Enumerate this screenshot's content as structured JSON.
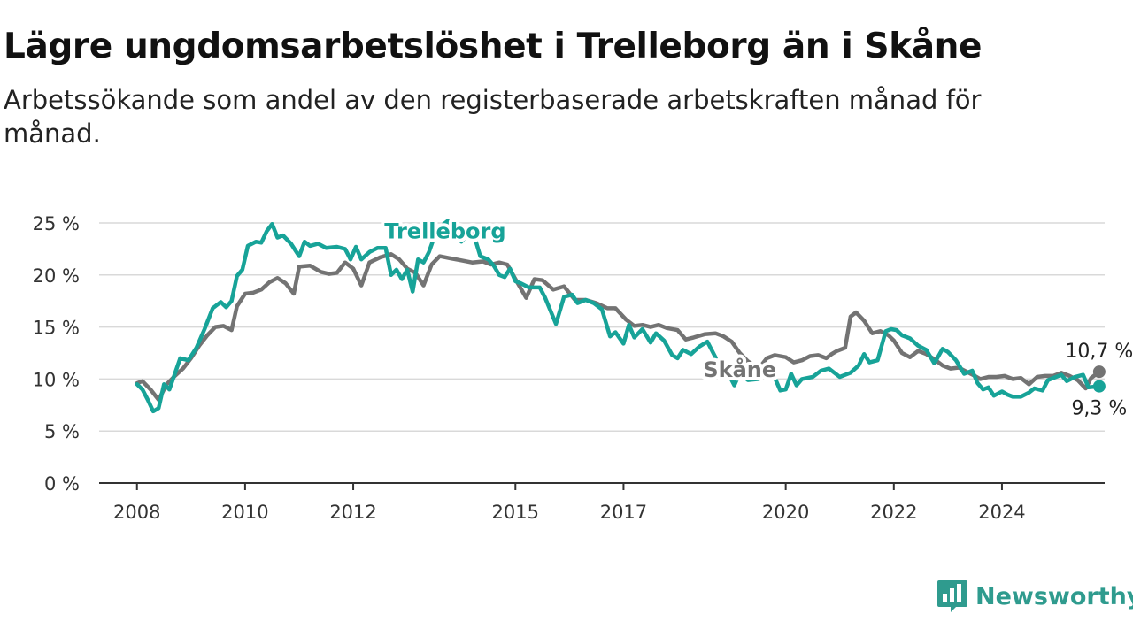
{
  "title": "Lägre ungdomsarbetslöshet i Trelleborg än i Skåne",
  "subtitle": "Arbetssökande som andel av den registerbaserade arbetskraften månad för månad.",
  "brand": "Newsworthy",
  "chart_data": {
    "type": "line",
    "title": "Lägre ungdomsarbetslöshet i Trelleborg än i Skåne",
    "subtitle": "Arbetssökande som andel av den registerbaserade arbetskraften månad för månad.",
    "xlabel": "",
    "ylabel": "",
    "ylim": [
      0,
      25
    ],
    "xlim": [
      2007.3,
      2025.9
    ],
    "y_ticks": [
      0,
      5,
      10,
      15,
      20,
      25
    ],
    "y_tick_labels": [
      "0 %",
      "5 %",
      "10 %",
      "15 %",
      "20 %",
      "25 %"
    ],
    "x_ticks": [
      2008,
      2010,
      2012,
      2015,
      2017,
      2020,
      2022,
      2024
    ],
    "x_tick_labels": [
      "2008",
      "2010",
      "2012",
      "2015",
      "2017",
      "2020",
      "2022",
      "2024"
    ],
    "grid": "horizontal",
    "legend": "inline labels",
    "series": [
      {
        "name": "Skåne",
        "color": "#737373",
        "end_label": "10,7 %",
        "points": [
          [
            2008.0,
            9.6
          ],
          [
            2008.1,
            9.8
          ],
          [
            2008.25,
            9.0
          ],
          [
            2008.4,
            8.0
          ],
          [
            2008.55,
            9.5
          ],
          [
            2008.7,
            10.3
          ],
          [
            2008.85,
            11.0
          ],
          [
            2009.0,
            12.0
          ],
          [
            2009.15,
            13.2
          ],
          [
            2009.3,
            14.2
          ],
          [
            2009.45,
            15.0
          ],
          [
            2009.6,
            15.1
          ],
          [
            2009.75,
            14.7
          ],
          [
            2009.85,
            17.0
          ],
          [
            2010.0,
            18.2
          ],
          [
            2010.15,
            18.3
          ],
          [
            2010.3,
            18.6
          ],
          [
            2010.45,
            19.3
          ],
          [
            2010.6,
            19.7
          ],
          [
            2010.75,
            19.2
          ],
          [
            2010.9,
            18.2
          ],
          [
            2011.0,
            20.8
          ],
          [
            2011.2,
            20.9
          ],
          [
            2011.4,
            20.3
          ],
          [
            2011.55,
            20.1
          ],
          [
            2011.7,
            20.2
          ],
          [
            2011.85,
            21.2
          ],
          [
            2012.0,
            20.6
          ],
          [
            2012.15,
            19.0
          ],
          [
            2012.3,
            21.2
          ],
          [
            2012.5,
            21.7
          ],
          [
            2012.7,
            22.0
          ],
          [
            2012.85,
            21.5
          ],
          [
            2013.0,
            20.6
          ],
          [
            2013.15,
            20.2
          ],
          [
            2013.3,
            19.0
          ],
          [
            2013.45,
            21.0
          ],
          [
            2013.6,
            21.8
          ],
          [
            2013.8,
            21.6
          ],
          [
            2014.0,
            21.4
          ],
          [
            2014.2,
            21.2
          ],
          [
            2014.4,
            21.3
          ],
          [
            2014.55,
            21.0
          ],
          [
            2014.7,
            21.2
          ],
          [
            2014.85,
            21.0
          ],
          [
            2015.0,
            19.6
          ],
          [
            2015.2,
            17.8
          ],
          [
            2015.35,
            19.6
          ],
          [
            2015.5,
            19.5
          ],
          [
            2015.7,
            18.6
          ],
          [
            2015.9,
            18.9
          ],
          [
            2016.1,
            17.6
          ],
          [
            2016.3,
            17.6
          ],
          [
            2016.5,
            17.3
          ],
          [
            2016.7,
            16.8
          ],
          [
            2016.85,
            16.8
          ],
          [
            2017.05,
            15.7
          ],
          [
            2017.2,
            15.1
          ],
          [
            2017.35,
            15.2
          ],
          [
            2017.5,
            15.0
          ],
          [
            2017.65,
            15.2
          ],
          [
            2017.8,
            14.9
          ],
          [
            2018.0,
            14.7
          ],
          [
            2018.15,
            13.8
          ],
          [
            2018.3,
            14.0
          ],
          [
            2018.5,
            14.3
          ],
          [
            2018.7,
            14.4
          ],
          [
            2018.85,
            14.1
          ],
          [
            2019.0,
            13.6
          ],
          [
            2019.15,
            12.5
          ],
          [
            2019.3,
            11.7
          ],
          [
            2019.5,
            11.0
          ],
          [
            2019.65,
            12.0
          ],
          [
            2019.8,
            12.3
          ],
          [
            2020.0,
            12.1
          ],
          [
            2020.15,
            11.6
          ],
          [
            2020.3,
            11.8
          ],
          [
            2020.45,
            12.2
          ],
          [
            2020.6,
            12.3
          ],
          [
            2020.75,
            12.0
          ],
          [
            2020.85,
            12.4
          ],
          [
            2020.95,
            12.7
          ],
          [
            2021.1,
            13.0
          ],
          [
            2021.2,
            16.0
          ],
          [
            2021.3,
            16.4
          ],
          [
            2021.45,
            15.6
          ],
          [
            2021.6,
            14.4
          ],
          [
            2021.75,
            14.6
          ],
          [
            2021.9,
            14.2
          ],
          [
            2022.0,
            13.7
          ],
          [
            2022.15,
            12.5
          ],
          [
            2022.3,
            12.1
          ],
          [
            2022.45,
            12.7
          ],
          [
            2022.6,
            12.4
          ],
          [
            2022.75,
            11.9
          ],
          [
            2022.9,
            11.3
          ],
          [
            2023.05,
            11.0
          ],
          [
            2023.2,
            11.1
          ],
          [
            2023.35,
            10.7
          ],
          [
            2023.5,
            10.3
          ],
          [
            2023.6,
            10.0
          ],
          [
            2023.75,
            10.2
          ],
          [
            2023.9,
            10.2
          ],
          [
            2024.05,
            10.3
          ],
          [
            2024.2,
            10.0
          ],
          [
            2024.35,
            10.1
          ],
          [
            2024.5,
            9.5
          ],
          [
            2024.65,
            10.2
          ],
          [
            2024.8,
            10.3
          ],
          [
            2024.95,
            10.3
          ],
          [
            2025.1,
            10.6
          ],
          [
            2025.25,
            10.3
          ],
          [
            2025.4,
            9.9
          ],
          [
            2025.55,
            9.1
          ],
          [
            2025.65,
            10.1
          ],
          [
            2025.8,
            10.7
          ]
        ]
      },
      {
        "name": "Trelleborg",
        "color": "#17a398",
        "end_label": "9,3 %",
        "points": [
          [
            2008.0,
            9.5
          ],
          [
            2008.1,
            9.0
          ],
          [
            2008.2,
            8.0
          ],
          [
            2008.3,
            6.9
          ],
          [
            2008.4,
            7.2
          ],
          [
            2008.5,
            9.5
          ],
          [
            2008.6,
            9.0
          ],
          [
            2008.7,
            10.5
          ],
          [
            2008.8,
            12.0
          ],
          [
            2008.95,
            11.8
          ],
          [
            2009.1,
            13.0
          ],
          [
            2009.25,
            14.8
          ],
          [
            2009.4,
            16.8
          ],
          [
            2009.55,
            17.4
          ],
          [
            2009.65,
            16.9
          ],
          [
            2009.75,
            17.5
          ],
          [
            2009.85,
            19.9
          ],
          [
            2009.95,
            20.5
          ],
          [
            2010.05,
            22.8
          ],
          [
            2010.2,
            23.2
          ],
          [
            2010.3,
            23.1
          ],
          [
            2010.4,
            24.2
          ],
          [
            2010.5,
            24.9
          ],
          [
            2010.6,
            23.6
          ],
          [
            2010.7,
            23.8
          ],
          [
            2010.85,
            23.0
          ],
          [
            2011.0,
            21.8
          ],
          [
            2011.1,
            23.2
          ],
          [
            2011.2,
            22.8
          ],
          [
            2011.35,
            23.0
          ],
          [
            2011.5,
            22.6
          ],
          [
            2011.7,
            22.7
          ],
          [
            2011.85,
            22.5
          ],
          [
            2011.95,
            21.5
          ],
          [
            2012.05,
            22.7
          ],
          [
            2012.15,
            21.5
          ],
          [
            2012.3,
            22.2
          ],
          [
            2012.45,
            22.6
          ],
          [
            2012.6,
            22.6
          ],
          [
            2012.7,
            20.0
          ],
          [
            2012.8,
            20.5
          ],
          [
            2012.9,
            19.6
          ],
          [
            2013.0,
            20.5
          ],
          [
            2013.1,
            18.4
          ],
          [
            2013.2,
            21.5
          ],
          [
            2013.3,
            21.2
          ],
          [
            2013.4,
            22.2
          ],
          [
            2013.55,
            24.4
          ],
          [
            2013.75,
            25.2
          ],
          [
            2014.0,
            23.2
          ],
          [
            2014.2,
            24.4
          ],
          [
            2014.35,
            21.8
          ],
          [
            2014.5,
            21.5
          ],
          [
            2014.6,
            20.9
          ],
          [
            2014.7,
            20.0
          ],
          [
            2014.8,
            19.8
          ],
          [
            2014.9,
            20.6
          ],
          [
            2015.0,
            19.4
          ],
          [
            2015.1,
            19.2
          ],
          [
            2015.25,
            18.8
          ],
          [
            2015.45,
            18.8
          ],
          [
            2015.55,
            17.8
          ],
          [
            2015.75,
            15.3
          ],
          [
            2015.9,
            17.9
          ],
          [
            2016.05,
            18.1
          ],
          [
            2016.15,
            17.3
          ],
          [
            2016.3,
            17.6
          ],
          [
            2016.45,
            17.3
          ],
          [
            2016.6,
            16.7
          ],
          [
            2016.75,
            14.1
          ],
          [
            2016.85,
            14.5
          ],
          [
            2017.0,
            13.4
          ],
          [
            2017.1,
            15.2
          ],
          [
            2017.2,
            14.0
          ],
          [
            2017.35,
            14.8
          ],
          [
            2017.5,
            13.5
          ],
          [
            2017.6,
            14.4
          ],
          [
            2017.75,
            13.7
          ],
          [
            2017.9,
            12.3
          ],
          [
            2018.0,
            12.0
          ],
          [
            2018.1,
            12.8
          ],
          [
            2018.25,
            12.4
          ],
          [
            2018.4,
            13.1
          ],
          [
            2018.55,
            13.6
          ],
          [
            2018.75,
            11.6
          ],
          [
            2018.9,
            10.9
          ],
          [
            2019.05,
            9.4
          ],
          [
            2019.15,
            10.6
          ],
          [
            2019.3,
            9.9
          ],
          [
            2019.5,
            10.0
          ],
          [
            2019.65,
            10.5
          ],
          [
            2019.8,
            10.1
          ],
          [
            2019.9,
            8.9
          ],
          [
            2020.0,
            9.0
          ],
          [
            2020.1,
            10.5
          ],
          [
            2020.2,
            9.4
          ],
          [
            2020.3,
            10.0
          ],
          [
            2020.5,
            10.2
          ],
          [
            2020.65,
            10.8
          ],
          [
            2020.8,
            11.0
          ],
          [
            2021.0,
            10.2
          ],
          [
            2021.2,
            10.6
          ],
          [
            2021.35,
            11.3
          ],
          [
            2021.45,
            12.4
          ],
          [
            2021.55,
            11.6
          ],
          [
            2021.7,
            11.8
          ],
          [
            2021.85,
            14.6
          ],
          [
            2021.95,
            14.8
          ],
          [
            2022.05,
            14.7
          ],
          [
            2022.15,
            14.2
          ],
          [
            2022.3,
            13.9
          ],
          [
            2022.45,
            13.2
          ],
          [
            2022.6,
            12.8
          ],
          [
            2022.75,
            11.5
          ],
          [
            2022.9,
            12.9
          ],
          [
            2023.0,
            12.6
          ],
          [
            2023.15,
            11.8
          ],
          [
            2023.3,
            10.5
          ],
          [
            2023.45,
            10.8
          ],
          [
            2023.55,
            9.6
          ],
          [
            2023.65,
            9.0
          ],
          [
            2023.75,
            9.2
          ],
          [
            2023.85,
            8.4
          ],
          [
            2024.0,
            8.8
          ],
          [
            2024.1,
            8.5
          ],
          [
            2024.2,
            8.3
          ],
          [
            2024.35,
            8.3
          ],
          [
            2024.5,
            8.7
          ],
          [
            2024.6,
            9.1
          ],
          [
            2024.75,
            8.9
          ],
          [
            2024.85,
            9.9
          ],
          [
            2025.0,
            10.2
          ],
          [
            2025.1,
            10.4
          ],
          [
            2025.2,
            9.8
          ],
          [
            2025.35,
            10.2
          ],
          [
            2025.5,
            10.4
          ],
          [
            2025.6,
            9.2
          ],
          [
            2025.8,
            9.3
          ]
        ]
      }
    ]
  }
}
